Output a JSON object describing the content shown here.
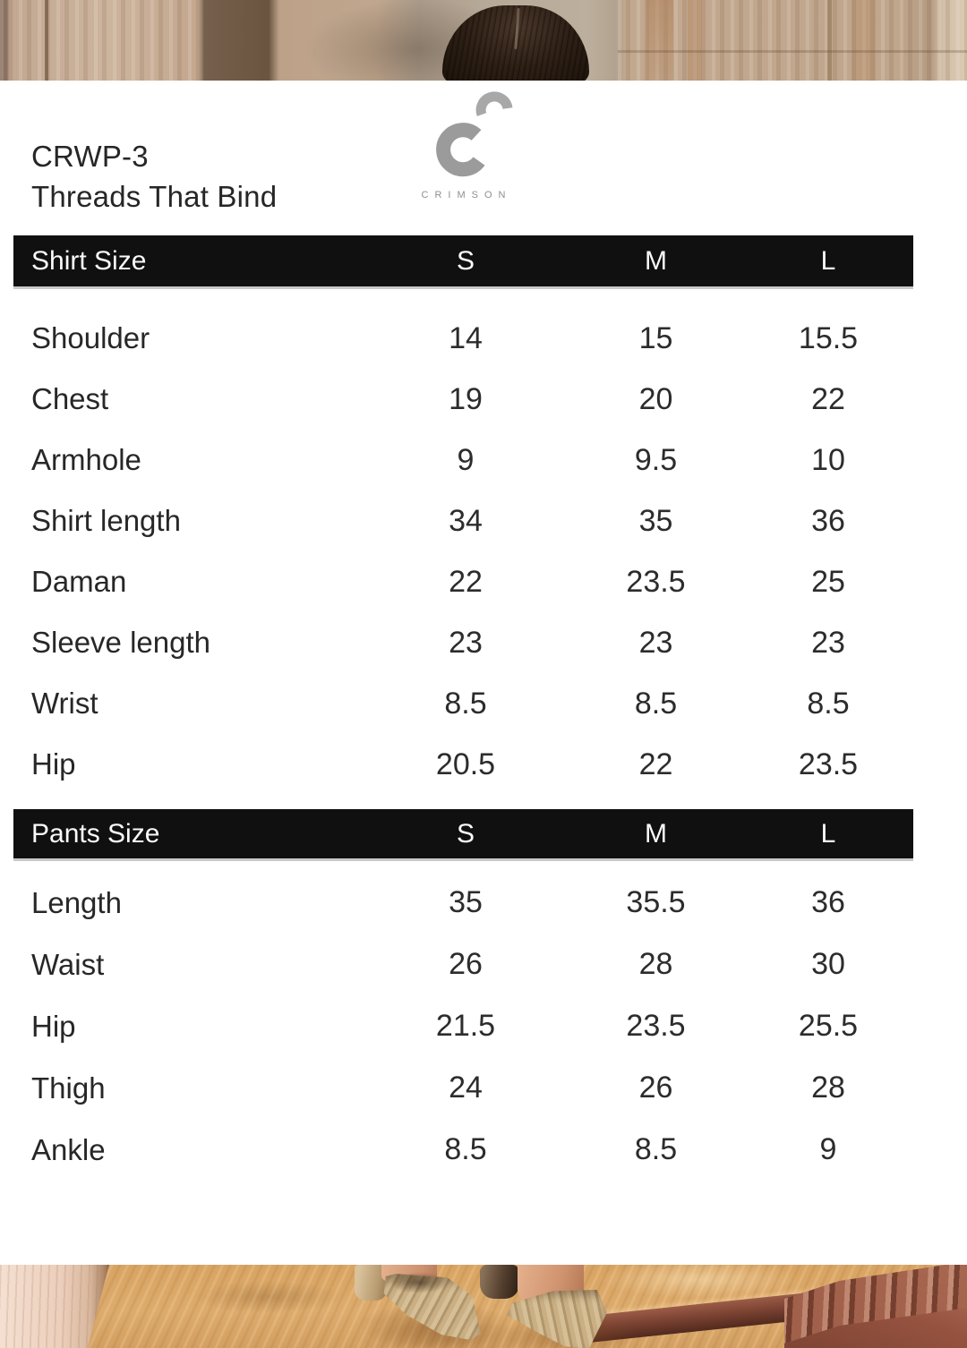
{
  "product": {
    "code": "CRWP-3",
    "name": "Threads That Bind"
  },
  "brand": {
    "name": "CRIMSON"
  },
  "colors": {
    "panel": "#ffffff",
    "header_bar": "#101010",
    "header_text": "#fafafa",
    "body_text": "#2c2c2c",
    "logo_gray": "#9b9b9b",
    "sand": "#d9a462",
    "railing_red": "#95523f"
  },
  "tables": [
    {
      "header": "Shirt Size",
      "columns": [
        "S",
        "M",
        "L"
      ],
      "rows": [
        {
          "label": "Shoulder",
          "values": [
            "14",
            "15",
            "15.5"
          ]
        },
        {
          "label": "Chest",
          "values": [
            "19",
            "20",
            "22"
          ]
        },
        {
          "label": "Armhole",
          "values": [
            "9",
            "9.5",
            "10"
          ]
        },
        {
          "label": "Shirt length",
          "values": [
            "34",
            "35",
            "36"
          ]
        },
        {
          "label": "Daman",
          "values": [
            "22",
            "23.5",
            "25"
          ]
        },
        {
          "label": "Sleeve length",
          "values": [
            "23",
            "23",
            "23"
          ]
        },
        {
          "label": "Wrist",
          "values": [
            "8.5",
            "8.5",
            "8.5"
          ]
        },
        {
          "label": "Hip",
          "values": [
            "20.5",
            "22",
            "23.5"
          ]
        }
      ]
    },
    {
      "header": "Pants Size",
      "columns": [
        "S",
        "M",
        "L"
      ],
      "rows": [
        {
          "label": "Length",
          "values": [
            "35",
            "35.5",
            "36"
          ]
        },
        {
          "label": "Waist",
          "values": [
            "26",
            "28",
            "30"
          ]
        },
        {
          "label": "Hip",
          "values": [
            "21.5",
            "23.5",
            "25.5"
          ]
        },
        {
          "label": "Thigh",
          "values": [
            "24",
            "26",
            "28"
          ]
        },
        {
          "label": "Ankle",
          "values": [
            "8.5",
            "8.5",
            "9"
          ]
        }
      ]
    }
  ]
}
